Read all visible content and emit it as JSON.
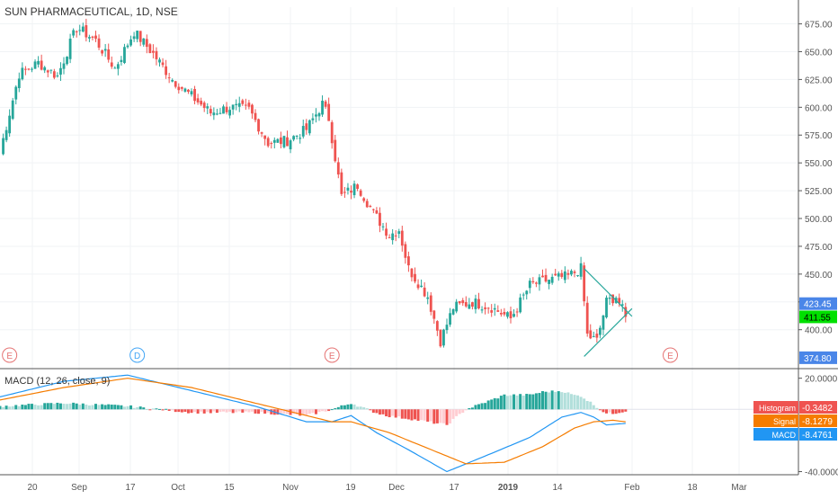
{
  "chart_data": [
    {
      "type": "candlestick",
      "title": "SUN PHARMACEUTICAL, 1D, NSE",
      "ylim": [
        365,
        690
      ],
      "yticks": [
        "675.00",
        "650.00",
        "625.00",
        "600.00",
        "575.00",
        "550.00",
        "525.00",
        "500.00",
        "475.00",
        "450.00",
        "425.00",
        "400.00"
      ],
      "xticks": [
        "20",
        "Sep",
        "17",
        "Oct",
        "15",
        "Nov",
        "19",
        "Dec",
        "17",
        "2019",
        "14",
        "Feb",
        "18",
        "Mar"
      ],
      "grid": true,
      "price_labels": [
        {
          "value": 423.45,
          "text": "423.45",
          "color": "#4a86e8"
        },
        {
          "value": 411.55,
          "text": "411.55",
          "color": "#00e000"
        },
        {
          "value": 374.8,
          "text": "374.80",
          "color": "#4a86e8"
        }
      ],
      "event_markers": [
        {
          "date_index": 3,
          "text": "E",
          "color": "#e57373"
        },
        {
          "date_index": 43,
          "text": "D",
          "color": "#42a5f5"
        },
        {
          "date_index": 104,
          "text": "E",
          "color": "#e57373"
        },
        {
          "date_index": 210,
          "text": "E",
          "color": "#e57373"
        }
      ],
      "trendlines": [
        {
          "from_day": 183,
          "from_value": 455,
          "to_day": 198,
          "to_value": 412
        },
        {
          "from_day": 183,
          "from_value": 376,
          "to_day": 198,
          "to_value": 419
        }
      ],
      "up_color": "#26a69a",
      "down_color": "#ef5350",
      "anchors": [
        [
          0,
          560
        ],
        [
          6,
          630
        ],
        [
          12,
          640
        ],
        [
          18,
          628
        ],
        [
          24,
          672
        ],
        [
          30,
          660
        ],
        [
          36,
          635
        ],
        [
          42,
          668
        ],
        [
          48,
          648
        ],
        [
          54,
          625
        ],
        [
          60,
          610
        ],
        [
          66,
          595
        ],
        [
          72,
          600
        ],
        [
          78,
          598
        ],
        [
          84,
          568
        ],
        [
          90,
          570
        ],
        [
          96,
          580
        ],
        [
          101,
          603
        ],
        [
          103,
          590
        ],
        [
          107,
          520
        ],
        [
          112,
          530
        ],
        [
          117,
          505
        ],
        [
          122,
          485
        ],
        [
          125,
          490
        ],
        [
          128,
          455
        ],
        [
          134,
          430
        ],
        [
          138,
          390
        ],
        [
          142,
          420
        ],
        [
          148,
          425
        ],
        [
          154,
          420
        ],
        [
          160,
          410
        ],
        [
          166,
          440
        ],
        [
          172,
          445
        ],
        [
          178,
          448
        ],
        [
          182,
          455
        ],
        [
          184,
          395
        ],
        [
          187,
          390
        ],
        [
          190,
          425
        ],
        [
          193,
          430
        ],
        [
          196,
          412
        ]
      ]
    },
    {
      "type": "macd",
      "title": "MACD (12, 26, close, 9)",
      "ylim": [
        -42,
        25
      ],
      "yticks": [
        "20.0000",
        "-40.0000"
      ],
      "series": [
        {
          "name": "MACD",
          "color": "#2196f3",
          "anchors": [
            [
              0,
              8
            ],
            [
              20,
              18
            ],
            [
              40,
              22
            ],
            [
              60,
              12
            ],
            [
              80,
              2
            ],
            [
              96,
              -8
            ],
            [
              104,
              -8
            ],
            [
              110,
              -4
            ],
            [
              118,
              -15
            ],
            [
              128,
              -26
            ],
            [
              140,
              -40
            ],
            [
              152,
              -30
            ],
            [
              166,
              -18
            ],
            [
              176,
              -5
            ],
            [
              182,
              -2
            ],
            [
              186,
              -5
            ],
            [
              190,
              -10
            ],
            [
              196,
              -9
            ]
          ]
        },
        {
          "name": "Signal",
          "color": "#f57c00",
          "anchors": [
            [
              0,
              6
            ],
            [
              20,
              14
            ],
            [
              40,
              20
            ],
            [
              60,
              14
            ],
            [
              80,
              4
            ],
            [
              96,
              -4
            ],
            [
              104,
              -8
            ],
            [
              110,
              -8
            ],
            [
              122,
              -15
            ],
            [
              134,
              -25
            ],
            [
              146,
              -35
            ],
            [
              158,
              -34
            ],
            [
              170,
              -24
            ],
            [
              180,
              -12
            ],
            [
              186,
              -8
            ],
            [
              192,
              -7
            ],
            [
              196,
              -8
            ]
          ]
        }
      ],
      "histogram": {
        "up_light": "#b2dfdb",
        "up_dark": "#26a69a",
        "down_light": "#ffcdd2",
        "down_dark": "#ef5350"
      },
      "last_values": [
        {
          "label": "Histogram",
          "value": "-0.3482",
          "color": "#ef5350"
        },
        {
          "label": "Signal",
          "value": "-8.1279",
          "color": "#f57c00"
        },
        {
          "label": "MACD",
          "value": "-8.4761",
          "color": "#2196f3"
        }
      ]
    }
  ]
}
